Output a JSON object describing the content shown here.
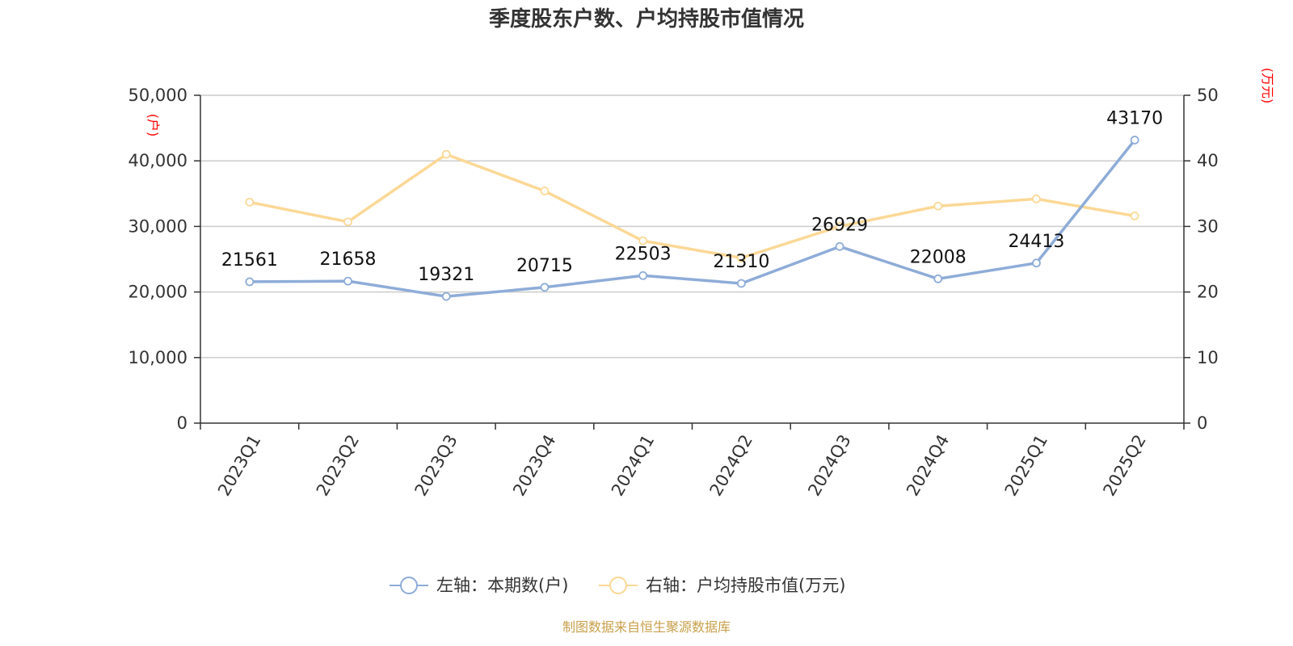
{
  "chart_data": {
    "type": "line",
    "title": "季度股东户数、户均持股市值情况",
    "categories": [
      "2023Q1",
      "2023Q2",
      "2023Q3",
      "2023Q4",
      "2024Q1",
      "2024Q2",
      "2024Q3",
      "2024Q4",
      "2025Q1",
      "2025Q2"
    ],
    "left_axis": {
      "unit": "(户)",
      "ylim": [
        0,
        50000
      ],
      "ticks": [
        "0",
        "10,000",
        "20,000",
        "30,000",
        "40,000",
        "50,000"
      ]
    },
    "right_axis": {
      "unit": "(万元)",
      "ylim": [
        0,
        50
      ],
      "ticks": [
        "0",
        "10",
        "20",
        "30",
        "40",
        "50"
      ]
    },
    "series": [
      {
        "name": "左轴：本期数(户)",
        "axis": "left",
        "color": "#8eacd8",
        "values": [
          21561,
          21658,
          19321,
          20715,
          22503,
          21310,
          26929,
          22008,
          24413,
          43170
        ],
        "labels": [
          "21561",
          "21658",
          "19321",
          "20715",
          "22503",
          "21310",
          "26929",
          "22008",
          "24413",
          "43170"
        ]
      },
      {
        "name": "右轴：户均持股市值(万元)",
        "axis": "right",
        "color": "#fbd896",
        "values": [
          33.7,
          30.7,
          41.0,
          35.4,
          27.8,
          25.2,
          30.0,
          33.1,
          34.2,
          31.6
        ]
      }
    ],
    "grid": true,
    "legend_position": "bottom"
  },
  "source": "制图数据来自恒生聚源数据库"
}
